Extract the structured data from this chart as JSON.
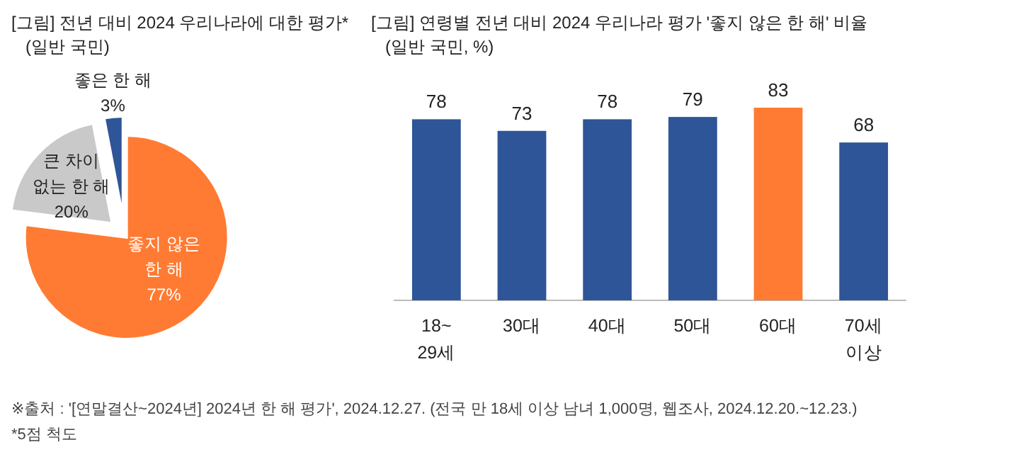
{
  "chart_data": [
    {
      "type": "pie",
      "title": "[그림] 전년 대비 2024 우리나라에 대한 평가*",
      "subtitle": "(일반 국민)",
      "categories": [
        "좋지 않은\n한 해",
        "큰 차이\n없는 한 해",
        "좋은 한 해"
      ],
      "values": [
        77,
        20,
        3
      ],
      "colors": [
        "#ff7b33",
        "#c9c9c9",
        "#2e5597"
      ],
      "value_labels": [
        "77%",
        "20%",
        "3%"
      ]
    },
    {
      "type": "bar",
      "title": "[그림] 연령별 전년 대비 2024 우리나라 평가 '좋지 않은 한 해' 비율",
      "subtitle": "(일반 국민, %)",
      "categories": [
        "18~\n29세",
        "30대",
        "40대",
        "50대",
        "60대",
        "70세\n이상"
      ],
      "values": [
        78,
        73,
        78,
        79,
        83,
        68
      ],
      "colors": [
        "#2e5597",
        "#2e5597",
        "#2e5597",
        "#2e5597",
        "#ff7b33",
        "#2e5597"
      ],
      "data_labels": true,
      "annotations": [
        "※출처 : '[연말결산~2024년] 2024년 한 해 평가', 2024.12.27. (전국 만 18세 이상 남녀 1,000명, 웹조사, 2024.12.20.~12.23.)",
        "*5점 척도"
      ]
    }
  ]
}
